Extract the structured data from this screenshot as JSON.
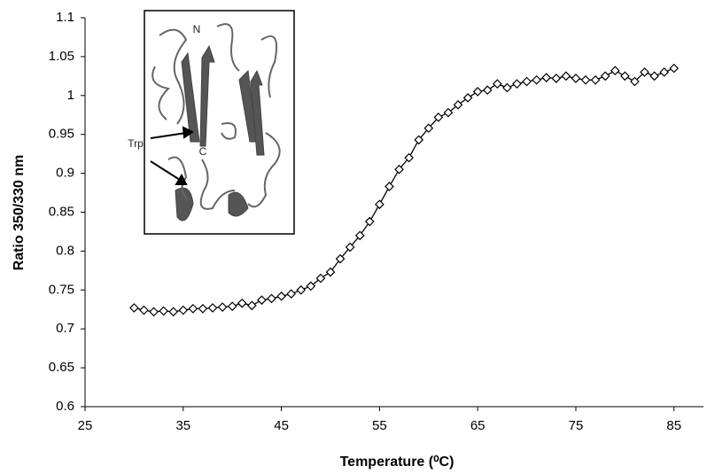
{
  "chart_data": {
    "type": "line",
    "x_label": "Temperature (⁰C)",
    "y_label": "Ratio 350/330 nm",
    "x": [
      30,
      31,
      32,
      33,
      34,
      35,
      36,
      37,
      38,
      39,
      40,
      41,
      42,
      43,
      44,
      45,
      46,
      47,
      48,
      49,
      50,
      51,
      52,
      53,
      54,
      55,
      56,
      57,
      58,
      59,
      60,
      61,
      62,
      63,
      64,
      65,
      66,
      67,
      68,
      69,
      70,
      71,
      72,
      73,
      74,
      75,
      76,
      77,
      78,
      79,
      80,
      81,
      82,
      83,
      84,
      85
    ],
    "series": [
      {
        "color": "#000000",
        "values": [
          0.727,
          0.724,
          0.722,
          0.723,
          0.722,
          0.724,
          0.726,
          0.726,
          0.727,
          0.728,
          0.729,
          0.733,
          0.73,
          0.737,
          0.739,
          0.742,
          0.745,
          0.75,
          0.755,
          0.765,
          0.773,
          0.79,
          0.805,
          0.82,
          0.838,
          0.86,
          0.883,
          0.905,
          0.92,
          0.943,
          0.958,
          0.972,
          0.978,
          0.988,
          0.997,
          1.005,
          1.007,
          1.015,
          1.01,
          1.015,
          1.018,
          1.02,
          1.023,
          1.022,
          1.025,
          1.022,
          1.02,
          1.02,
          1.025,
          1.032,
          1.025,
          1.018,
          1.03,
          1.025,
          1.03,
          1.035
        ]
      }
    ],
    "xlim": [
      25,
      88
    ],
    "xticks": [
      25,
      35,
      45,
      55,
      65,
      75,
      85
    ],
    "ylim": [
      0.6,
      1.1
    ],
    "yticks": [
      0.6,
      0.65,
      0.7,
      0.75,
      0.8,
      0.85,
      0.9,
      0.95,
      1,
      1.05,
      1.1
    ],
    "grid": false,
    "inset": {
      "labels": [
        "N",
        "C",
        "Trp"
      ]
    }
  }
}
